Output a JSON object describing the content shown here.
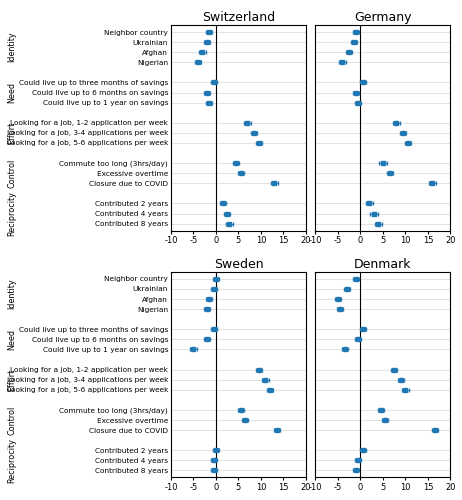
{
  "chart_data": [
    {
      "type": "errorbar",
      "title": "Switzerland",
      "orientation": "horizontal",
      "marker": "s",
      "grid": "y",
      "categories": [
        "Neighbor country",
        "Ukrainian",
        "Afghan",
        "Nigerian",
        "Could live up to three months of savings",
        "Could live up to 6 months on savings",
        "Could live up to 1 year on savings",
        "Looking for a job, 1-2 application per week",
        "Looking for a job, 3-4 applications per week",
        "Looking for a job, 5-6 applications per week",
        "Commute too long (3hrs/day)",
        "Excessive overtime",
        "Closure due to COVID",
        "Contributed 2 years",
        "Contributed 4 years",
        "Contributed 8 years"
      ],
      "groups": [
        {
          "name": "Identity",
          "count": 4
        },
        {
          "name": "Need",
          "count": 3
        },
        {
          "name": "Effort",
          "count": 3
        },
        {
          "name": "Control",
          "count": 3
        },
        {
          "name": "Reciprocity",
          "count": 3
        }
      ],
      "values": [
        -1.5,
        -2.0,
        -3.0,
        -4.0,
        -0.5,
        -2.0,
        -1.5,
        7.0,
        8.5,
        9.5,
        4.5,
        5.5,
        13.0,
        1.5,
        2.5,
        3.0
      ],
      "ci_low": [
        -2.2,
        -2.7,
        -3.7,
        -4.7,
        -1.2,
        -2.7,
        -2.2,
        6.2,
        7.8,
        8.8,
        3.8,
        4.8,
        12.2,
        0.8,
        1.8,
        2.3
      ],
      "ci_high": [
        -0.8,
        -1.3,
        -2.3,
        -3.3,
        0.2,
        -1.3,
        -0.8,
        7.8,
        9.2,
        10.2,
        5.2,
        6.2,
        13.8,
        2.2,
        3.2,
        3.7
      ],
      "reference_line": 0,
      "xlim": [
        -10,
        20
      ],
      "xticks": [
        -10,
        -5,
        0,
        5,
        10,
        15,
        20
      ]
    },
    {
      "type": "errorbar",
      "title": "Germany",
      "orientation": "horizontal",
      "marker": "s",
      "grid": "y",
      "tick_labels": "x",
      "categories": [
        "Neighbor country",
        "Ukrainian",
        "Afghan",
        "Nigerian",
        "Could live up to three months of savings",
        "Could live up to 6 months on savings",
        "Could live up to 1 year on savings",
        "Looking for a job, 1-2 application per week",
        "Looking for a job, 3-4 applications per week",
        "Looking for a job, 5-6 applications per week",
        "Commute too long (3hrs/day)",
        "Excessive overtime",
        "Closure due to COVID",
        "Contributed 2 years",
        "Contributed 4 years",
        "Contributed 8 years"
      ],
      "groups": [
        {
          "name": "Identity",
          "count": 4
        },
        {
          "name": "Need",
          "count": 3
        },
        {
          "name": "Effort",
          "count": 3
        },
        {
          "name": "Control",
          "count": 3
        },
        {
          "name": "Reciprocity",
          "count": 3
        }
      ],
      "values": [
        -1.0,
        -1.5,
        -2.5,
        -4.0,
        0.5,
        -1.0,
        -0.5,
        8.0,
        9.5,
        10.5,
        5.0,
        6.5,
        16.0,
        2.0,
        3.0,
        4.0
      ],
      "ci_low": [
        -1.7,
        -2.2,
        -3.2,
        -4.7,
        -0.2,
        -1.7,
        -1.2,
        7.2,
        8.8,
        9.8,
        4.2,
        5.8,
        15.2,
        1.2,
        2.2,
        3.2
      ],
      "ci_high": [
        -0.3,
        -0.8,
        -1.8,
        -3.3,
        1.2,
        -0.3,
        0.2,
        8.8,
        10.2,
        11.2,
        5.8,
        7.2,
        16.8,
        2.8,
        3.8,
        4.8
      ],
      "reference_line": 0,
      "xlim": [
        -10,
        20
      ],
      "xticks": [
        -10,
        -5,
        0,
        5,
        10,
        15,
        20
      ]
    },
    {
      "type": "errorbar",
      "title": "Sweden",
      "orientation": "horizontal",
      "marker": "s",
      "grid": "y",
      "categories": [
        "Neighbor country",
        "Ukrainian",
        "Afghan",
        "Nigerian",
        "Could live up to three months of savings",
        "Could live up to 6 months on savings",
        "Could live up to 1 year on savings",
        "Looking for a job, 1-2 application per week",
        "Looking for a job, 3-4 applications per week",
        "Looking for a job, 5-6 applications per week",
        "Commute too long (3hrs/day)",
        "Excessive overtime",
        "Closure due to COVID",
        "Contributed 2 years",
        "Contributed 4 years",
        "Contributed 8 years"
      ],
      "groups": [
        {
          "name": "Identity",
          "count": 4
        },
        {
          "name": "Need",
          "count": 3
        },
        {
          "name": "Effort",
          "count": 3
        },
        {
          "name": "Control",
          "count": 3
        },
        {
          "name": "Reciprocity",
          "count": 3
        }
      ],
      "values": [
        0.0,
        -0.5,
        -1.5,
        -2.0,
        -0.5,
        -2.0,
        -5.0,
        9.5,
        11.0,
        12.0,
        5.5,
        6.5,
        13.5,
        0.0,
        -0.5,
        -0.5
      ],
      "ci_low": [
        -0.7,
        -1.2,
        -2.2,
        -2.7,
        -1.2,
        -2.7,
        -5.7,
        8.8,
        10.3,
        11.3,
        4.8,
        5.8,
        12.8,
        -0.7,
        -1.2,
        -1.2
      ],
      "ci_high": [
        0.7,
        0.2,
        -0.8,
        -1.3,
        0.2,
        -1.3,
        -4.3,
        10.2,
        11.7,
        12.7,
        6.2,
        7.2,
        14.2,
        0.7,
        0.2,
        0.2
      ],
      "reference_line": 0,
      "xlim": [
        -10,
        20
      ],
      "xticks": [
        -10,
        -5,
        0,
        5,
        10,
        15,
        20
      ]
    },
    {
      "type": "errorbar",
      "title": "Denmark",
      "orientation": "horizontal",
      "marker": "s",
      "grid": "y",
      "tick_labels": "x",
      "categories": [
        "Neighbor country",
        "Ukrainian",
        "Afghan",
        "Nigerian",
        "Could live up to three months of savings",
        "Could live up to 6 months on savings",
        "Could live up to 1 year on savings",
        "Looking for a job, 1-2 application per week",
        "Looking for a job, 3-4 applications per week",
        "Looking for a job, 5-6 applications per week",
        "Commute too long (3hrs/day)",
        "Excessive overtime",
        "Closure due to COVID",
        "Contributed 2 years",
        "Contributed 4 years",
        "Contributed 8 years"
      ],
      "groups": [
        {
          "name": "Identity",
          "count": 4
        },
        {
          "name": "Need",
          "count": 3
        },
        {
          "name": "Effort",
          "count": 3
        },
        {
          "name": "Control",
          "count": 3
        },
        {
          "name": "Reciprocity",
          "count": 3
        }
      ],
      "values": [
        -1.0,
        -3.0,
        -5.0,
        -4.5,
        0.5,
        -0.5,
        -3.5,
        7.5,
        9.0,
        10.0,
        4.5,
        5.5,
        16.5,
        0.5,
        -0.5,
        -1.0
      ],
      "ci_low": [
        -1.7,
        -3.7,
        -5.7,
        -5.2,
        -0.2,
        -1.2,
        -4.2,
        6.8,
        8.3,
        9.3,
        3.8,
        4.8,
        15.8,
        -0.2,
        -1.2,
        -1.7
      ],
      "ci_high": [
        -0.3,
        -2.3,
        -4.3,
        -3.8,
        1.2,
        0.2,
        -2.8,
        8.2,
        9.7,
        10.7,
        5.2,
        6.2,
        17.2,
        1.2,
        0.2,
        -0.3
      ],
      "reference_line": 0,
      "xlim": [
        -10,
        20
      ],
      "xticks": [
        -10,
        -5,
        0,
        5,
        10,
        15,
        20
      ]
    }
  ]
}
